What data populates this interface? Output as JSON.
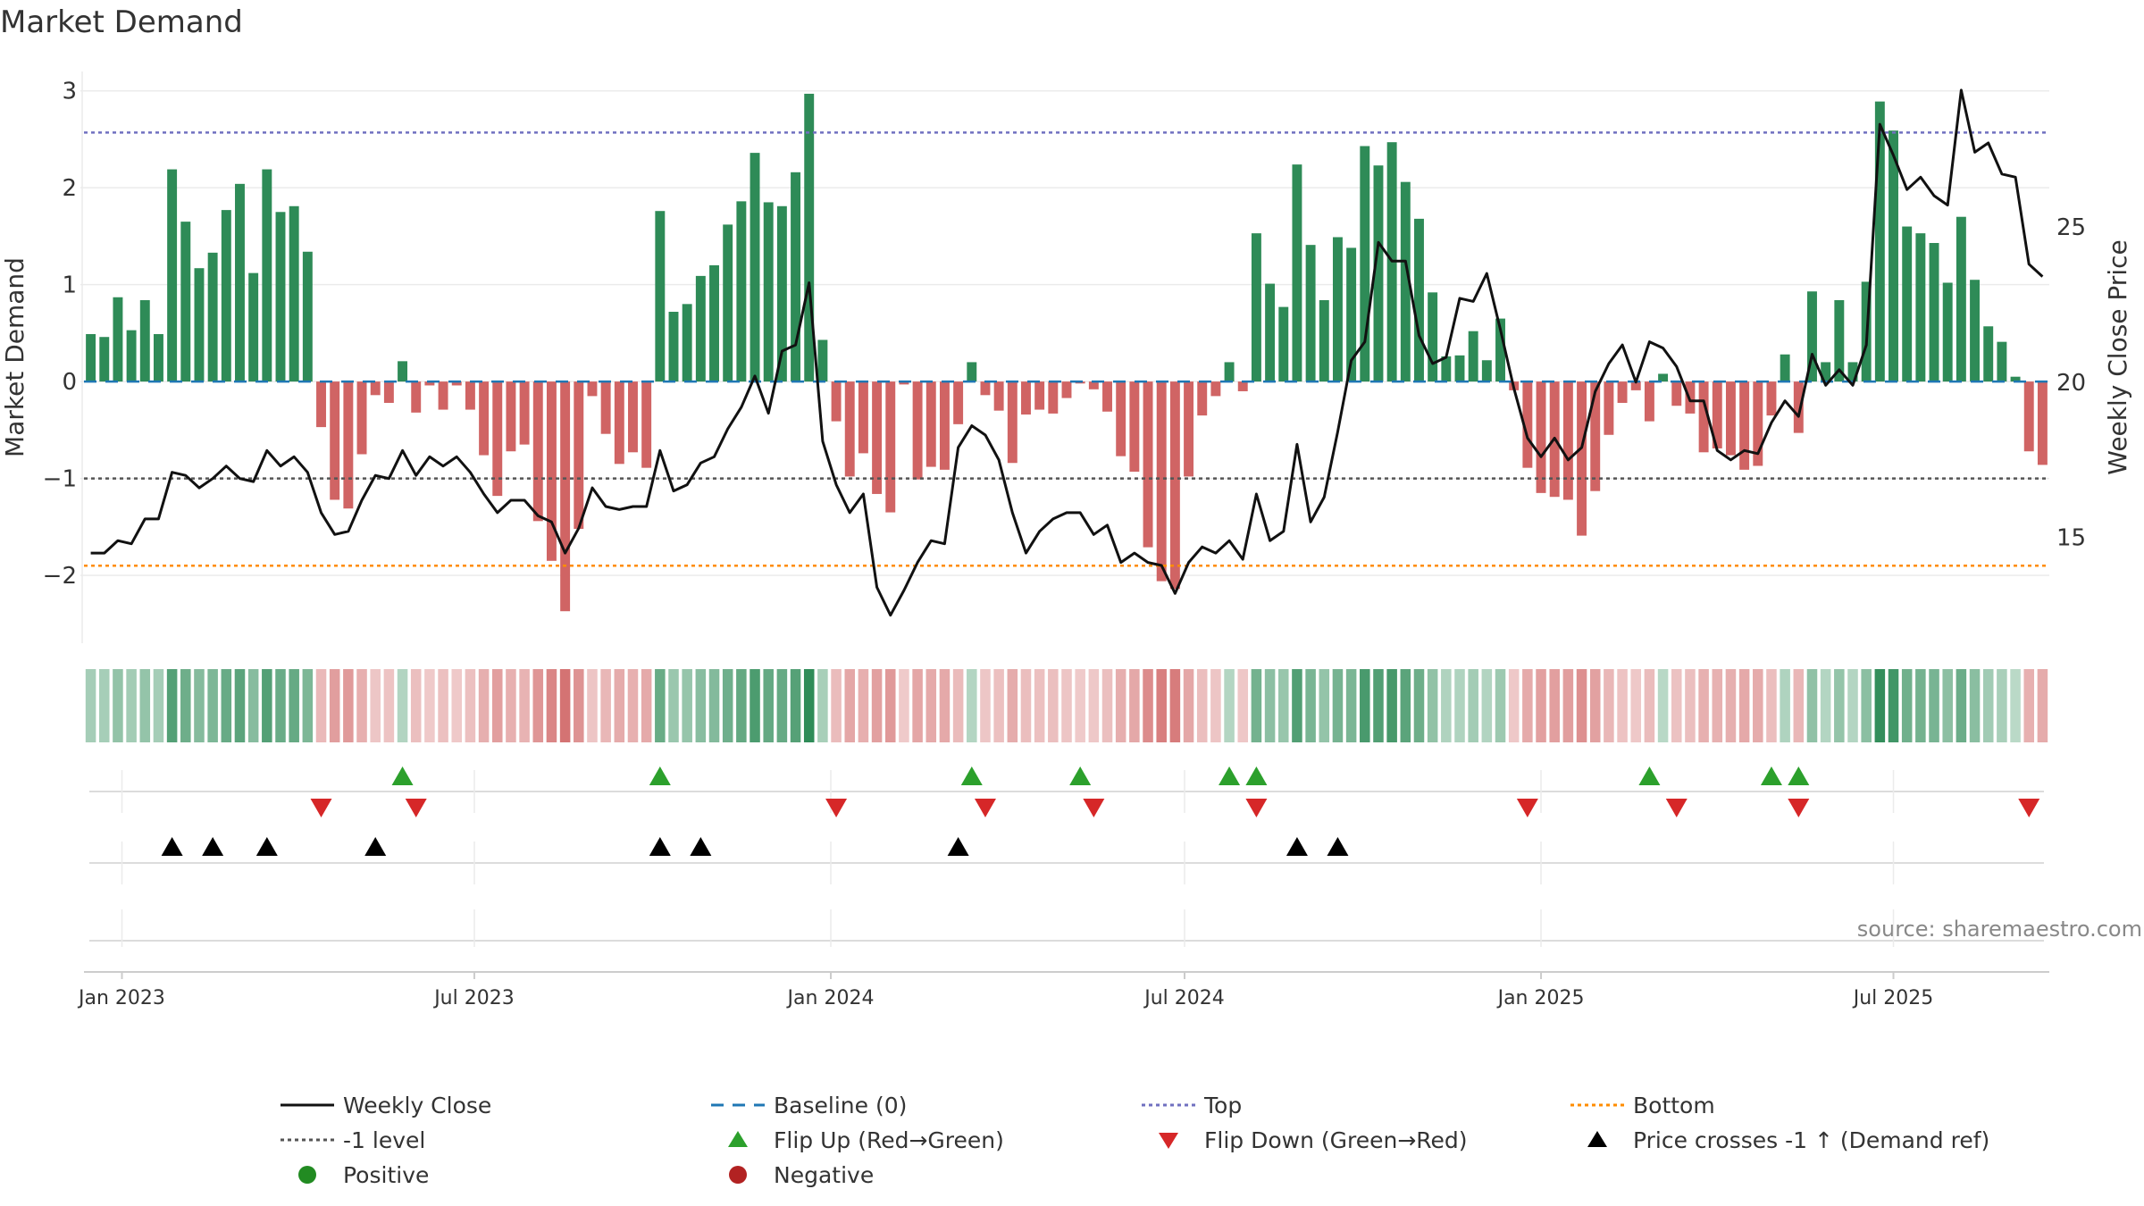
{
  "chart_data": {
    "type": "bar",
    "title": "Market Demand",
    "ylabel": "Market Demand",
    "ylabel_right": "Weekly Close Price",
    "ylim": [
      -2.7,
      3.2
    ],
    "ylim_right": [
      11.6,
      30.0
    ],
    "yticks": [
      3,
      2,
      1,
      0,
      -1,
      -2
    ],
    "ytick_labels": [
      "3",
      "2",
      "1",
      "0",
      "−1",
      "−2"
    ],
    "yticks_right": [
      25,
      20,
      15
    ],
    "ytick_labels_right": [
      "25",
      "20",
      "15"
    ],
    "x_ticks": [
      {
        "week": 2.3,
        "label": "Jan 2023"
      },
      {
        "week": 28.3,
        "label": "Jul 2023"
      },
      {
        "week": 54.6,
        "label": "Jan 2024"
      },
      {
        "week": 80.7,
        "label": "Jul 2024"
      },
      {
        "week": 107.0,
        "label": "Jan 2025"
      },
      {
        "week": 133.0,
        "label": "Jul 2025"
      }
    ],
    "reference_lines": {
      "top": 2.57,
      "minus_one": -1.0,
      "bottom": -1.9,
      "baseline": 0
    },
    "demand": [
      0.49,
      0.46,
      0.87,
      0.53,
      0.84,
      0.49,
      2.19,
      1.65,
      1.17,
      1.33,
      1.77,
      2.04,
      1.12,
      2.19,
      1.75,
      1.81,
      1.34,
      -0.47,
      -1.22,
      -1.31,
      -0.75,
      -0.14,
      -0.22,
      0.21,
      -0.32,
      -0.04,
      -0.29,
      -0.04,
      -0.29,
      -0.76,
      -1.18,
      -0.72,
      -0.65,
      -1.44,
      -1.85,
      -2.37,
      -1.52,
      -0.15,
      -0.54,
      -0.85,
      -0.73,
      -0.89,
      1.76,
      0.72,
      0.8,
      1.09,
      1.2,
      1.62,
      1.86,
      2.36,
      1.85,
      1.81,
      2.16,
      2.97,
      0.43,
      -0.41,
      -0.98,
      -0.74,
      -1.16,
      -1.35,
      -0.03,
      -1.01,
      -0.88,
      -0.91,
      -0.44,
      0.2,
      -0.14,
      -0.3,
      -0.84,
      -0.34,
      -0.29,
      -0.33,
      -0.17,
      -0.02,
      -0.08,
      -0.31,
      -0.77,
      -0.93,
      -1.71,
      -2.06,
      -2.14,
      -0.98,
      -0.35,
      -0.15,
      0.2,
      -0.1,
      1.53,
      1.01,
      0.77,
      2.24,
      1.41,
      0.84,
      1.49,
      1.38,
      2.43,
      2.23,
      2.47,
      2.06,
      1.68,
      0.92,
      0.26,
      0.27,
      0.52,
      0.22,
      0.65,
      -0.09,
      -0.89,
      -1.15,
      -1.19,
      -1.22,
      -1.59,
      -1.13,
      -0.55,
      -0.22,
      -0.09,
      -0.41,
      0.08,
      -0.25,
      -0.33,
      -0.73,
      -0.69,
      -0.76,
      -0.91,
      -0.87,
      -0.35,
      0.28,
      -0.53,
      0.93,
      0.2,
      0.84,
      0.2,
      1.03,
      2.89,
      2.59,
      1.6,
      1.53,
      1.43,
      1.02,
      1.7,
      1.05,
      0.57,
      0.41,
      0.05,
      -0.72,
      -0.86
    ],
    "weekly_close": [
      14.5,
      14.5,
      14.9,
      14.8,
      15.6,
      15.6,
      17.1,
      17.0,
      16.6,
      16.9,
      17.3,
      16.9,
      16.8,
      17.8,
      17.3,
      17.6,
      17.1,
      15.8,
      15.1,
      15.2,
      16.2,
      17.0,
      16.9,
      17.8,
      17.0,
      17.6,
      17.3,
      17.6,
      17.1,
      16.4,
      15.8,
      16.2,
      16.2,
      15.7,
      15.5,
      14.5,
      15.3,
      16.6,
      16.0,
      15.9,
      16.0,
      16.0,
      17.8,
      16.5,
      16.7,
      17.4,
      17.6,
      18.5,
      19.2,
      20.2,
      19.0,
      21.0,
      21.2,
      23.2,
      18.1,
      16.7,
      15.8,
      16.4,
      13.4,
      12.5,
      13.3,
      14.2,
      14.9,
      14.8,
      17.9,
      18.6,
      18.3,
      17.5,
      15.8,
      14.5,
      15.2,
      15.6,
      15.8,
      15.8,
      15.1,
      15.4,
      14.2,
      14.5,
      14.2,
      14.1,
      13.2,
      14.2,
      14.7,
      14.5,
      14.9,
      14.3,
      16.4,
      14.9,
      15.2,
      18.0,
      15.5,
      16.3,
      18.4,
      20.7,
      21.3,
      24.5,
      23.9,
      23.9,
      21.5,
      20.6,
      20.8,
      22.7,
      22.6,
      23.5,
      21.7,
      19.8,
      18.2,
      17.6,
      18.2,
      17.5,
      17.9,
      19.7,
      20.6,
      21.2,
      20.0,
      21.3,
      21.1,
      20.5,
      19.4,
      19.4,
      17.8,
      17.5,
      17.8,
      17.7,
      18.7,
      19.4,
      18.9,
      20.9,
      19.9,
      20.4,
      19.9,
      21.2,
      28.3,
      27.3,
      26.2,
      26.6,
      26.0,
      25.7,
      29.4,
      27.4,
      27.7,
      26.7,
      26.6,
      23.8,
      23.4
    ],
    "heat_strip": "Demand heat strip: green for positive weeks, red for negative weeks",
    "flip_up_weeks": [
      23,
      42,
      65,
      73,
      84,
      86,
      115,
      124,
      126
    ],
    "flip_down_weeks": [
      17,
      24,
      55,
      66,
      74,
      86,
      106,
      117,
      126,
      143
    ],
    "price_cross_weeks": [
      6,
      9,
      13,
      21,
      42,
      45,
      64,
      89,
      92
    ],
    "series_colors": {
      "positive": "#2e8b57",
      "negative": "#cd5c5c",
      "weekly_close": "#111111",
      "baseline": "#1f77b4",
      "top": "#7070c0",
      "minus_one": "#555555",
      "bottom": "#ff8c00",
      "flip_up": "#2ca02c",
      "flip_down": "#d62728",
      "cross": "#000000"
    }
  },
  "source": "source: sharemaestro.com",
  "legend": [
    {
      "label": "Weekly Close",
      "symbol": "line-solid",
      "color": "#111111"
    },
    {
      "label": "Baseline (0)",
      "symbol": "line-dash",
      "color": "#1f77b4"
    },
    {
      "label": "Top",
      "symbol": "line-dot",
      "color": "#7070c0"
    },
    {
      "label": "Bottom",
      "symbol": "line-dot",
      "color": "#ff8c00"
    },
    {
      "label": "-1 level",
      "symbol": "line-dot",
      "color": "#555555"
    },
    {
      "label": "Flip Up (Red→Green)",
      "symbol": "triangle-up",
      "color": "#2ca02c"
    },
    {
      "label": "Flip Down (Green→Red)",
      "symbol": "triangle-down",
      "color": "#d62728"
    },
    {
      "label": "Price crosses -1 ↑ (Demand ref)",
      "symbol": "triangle-up",
      "color": "#000000"
    },
    {
      "label": "Positive",
      "symbol": "circle",
      "color": "#228b22"
    },
    {
      "label": "Negative",
      "symbol": "circle",
      "color": "#b22222"
    }
  ]
}
